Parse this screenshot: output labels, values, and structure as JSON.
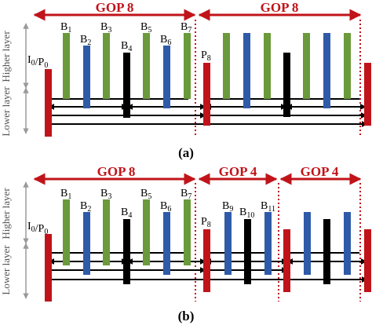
{
  "colors": {
    "red": "#c0141a",
    "green": "#6a9a3a",
    "blue": "#2f5aa8",
    "black": "#000000",
    "gop_arrow": "#c0141a",
    "separator": "#c0141a",
    "side_arrow": "#9a9a9a"
  },
  "side_labels": {
    "higher": "Higher layer",
    "lower": "Lower layer"
  },
  "panel_a": {
    "caption": "(a)",
    "gop_labels": [
      "GOP 8",
      "GOP 8"
    ],
    "frame_labels": [
      "I0/P0",
      "B1",
      "B2",
      "B3",
      "B4",
      "B5",
      "B6",
      "B7",
      "P8"
    ]
  },
  "panel_b": {
    "caption": "(b)",
    "gop_labels": [
      "GOP 8",
      "GOP 4",
      "GOP 4"
    ],
    "frame_labels": [
      "I0/P0",
      "B1",
      "B2",
      "B3",
      "B4",
      "B5",
      "B6",
      "B7",
      "P8",
      "B9",
      "B10",
      "B11"
    ]
  }
}
